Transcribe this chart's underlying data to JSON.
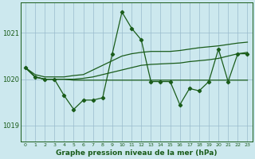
{
  "bg_color": "#cce8ee",
  "grid_color": "#99bbcc",
  "line_color": "#1a5c1a",
  "xlim": [
    -0.5,
    23.5
  ],
  "ylim": [
    1018.65,
    1021.65
  ],
  "yticks": [
    1019,
    1020,
    1021
  ],
  "xticks": [
    0,
    1,
    2,
    3,
    4,
    5,
    6,
    7,
    8,
    9,
    10,
    11,
    12,
    13,
    14,
    15,
    16,
    17,
    18,
    19,
    20,
    21,
    22,
    23
  ],
  "series_main": [
    1020.25,
    1020.05,
    1020.0,
    1020.0,
    1019.65,
    1019.35,
    1019.55,
    1019.55,
    1019.6,
    1020.55,
    1021.45,
    1021.1,
    1020.85,
    1019.95,
    1019.95,
    1019.95,
    1019.45,
    1019.8,
    1019.75,
    1019.95,
    1020.65,
    1019.95,
    1020.55,
    1020.55
  ],
  "series_trend1": [
    1020.25,
    1020.1,
    1020.05,
    1020.05,
    1020.05,
    1020.08,
    1020.1,
    1020.2,
    1020.3,
    1020.4,
    1020.5,
    1020.55,
    1020.58,
    1020.6,
    1020.6,
    1020.6,
    1020.62,
    1020.65,
    1020.68,
    1020.7,
    1020.72,
    1020.75,
    1020.78,
    1020.8
  ],
  "series_trend2": [
    1020.25,
    1020.05,
    1020.0,
    1020.0,
    1020.0,
    1020.0,
    1020.02,
    1020.05,
    1020.1,
    1020.15,
    1020.2,
    1020.25,
    1020.3,
    1020.32,
    1020.33,
    1020.34,
    1020.35,
    1020.38,
    1020.4,
    1020.42,
    1020.45,
    1020.5,
    1020.55,
    1020.58
  ],
  "series_trend3": [
    1020.25,
    1020.05,
    1020.0,
    1020.0,
    1020.0,
    1019.98,
    1019.98,
    1019.98,
    1019.98,
    1019.98,
    1019.98,
    1019.98,
    1019.98,
    1019.98,
    1019.98,
    1019.98,
    1019.98,
    1019.98,
    1019.98,
    1019.98,
    1019.98,
    1019.98,
    1019.98,
    1019.98
  ],
  "xlabel": "Graphe pression niveau de la mer (hPa)"
}
